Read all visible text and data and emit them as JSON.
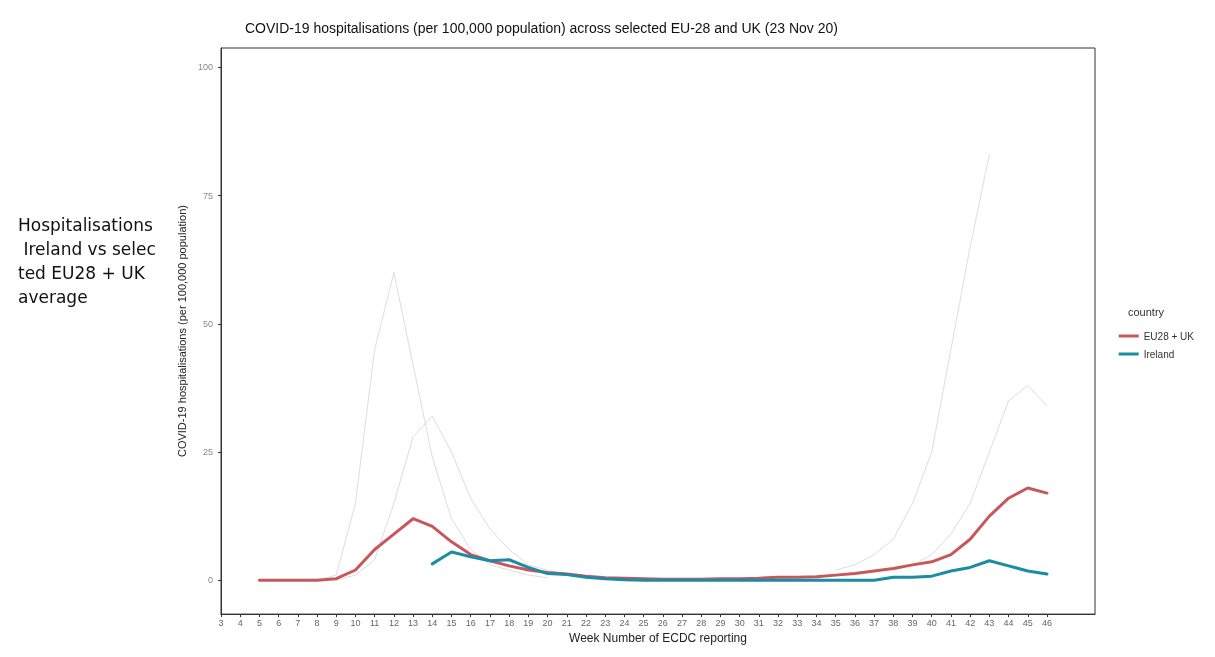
{
  "chart_data": {
    "type": "line",
    "title": "COVID-19 hospitalisations (per 100,000 population) across selected EU-28 and UK (23 Nov 20)",
    "xlabel": "Week Number of ECDC reporting",
    "ylabel": "COVID-19 hospitalisations (per 100,000 population)",
    "legend_title": "country",
    "annotations": [
      "Hospitalisations Ireland vs selected EU28 + UK average"
    ],
    "xlim": [
      3,
      48.5
    ],
    "xticks": [
      3,
      4,
      5,
      6,
      7,
      8,
      9,
      10,
      11,
      12,
      13,
      14,
      15,
      16,
      17,
      18,
      19,
      20,
      21,
      22,
      23,
      24,
      25,
      26,
      27,
      28,
      29,
      30,
      31,
      32,
      33,
      34,
      35,
      36,
      37,
      38,
      39,
      40,
      41,
      42,
      43,
      44,
      45,
      46
    ],
    "ylim": [
      -6.6,
      103.8
    ],
    "yticks": [
      0,
      25,
      50,
      75,
      100
    ],
    "grid": false,
    "legend": "right",
    "marker": "none",
    "line_style": "solid",
    "series": [
      {
        "color": "#dddddd",
        "x": [
          8,
          9,
          10,
          11,
          12,
          13,
          14,
          15,
          16,
          17,
          18,
          19,
          20
        ],
        "values": [
          0,
          1,
          15,
          45,
          60,
          42,
          24,
          12,
          6,
          3,
          2,
          1,
          0.5
        ]
      },
      {
        "color": "#dddddd",
        "x": [
          9,
          10,
          11,
          12,
          13,
          14,
          15,
          16,
          17,
          18,
          19,
          20,
          21,
          22
        ],
        "values": [
          0,
          1,
          4,
          15,
          28,
          32,
          25,
          16,
          10,
          6,
          3,
          2,
          1,
          0.5
        ]
      },
      {
        "color": "#dddddd",
        "x": [
          35,
          36,
          37,
          38,
          39,
          40,
          41,
          42,
          43
        ],
        "values": [
          2,
          3,
          5,
          8,
          15,
          25,
          45,
          65,
          83
        ]
      },
      {
        "color": "#dddddd",
        "x": [
          38,
          39,
          40,
          41,
          42,
          43,
          44,
          45,
          46
        ],
        "values": [
          2,
          3,
          5,
          9,
          15,
          25,
          35,
          38,
          34
        ]
      },
      {
        "name": "EU28 + UK",
        "color": "#c8575c",
        "x": [
          5,
          6,
          7,
          8,
          9,
          10,
          11,
          12,
          13,
          14,
          15,
          16,
          17,
          18,
          19,
          20,
          21,
          22,
          23,
          24,
          25,
          26,
          27,
          28,
          29,
          30,
          31,
          32,
          33,
          34,
          35,
          36,
          37,
          38,
          39,
          40,
          41,
          42,
          43,
          44,
          45,
          46
        ],
        "values": [
          0,
          0,
          0,
          0,
          0.3,
          2,
          6,
          9,
          12,
          10.5,
          7.5,
          5,
          3.8,
          2.8,
          2,
          1.5,
          1.2,
          0.8,
          0.5,
          0.4,
          0.3,
          0.2,
          0.2,
          0.2,
          0.3,
          0.3,
          0.4,
          0.6,
          0.6,
          0.7,
          1,
          1.3,
          1.8,
          2.3,
          3,
          3.6,
          5,
          8,
          12.5,
          16,
          18,
          17
        ]
      },
      {
        "name": "Ireland",
        "color": "#1a8ca3",
        "x": [
          14,
          15,
          16,
          17,
          18,
          19,
          20,
          21,
          22,
          23,
          24,
          25,
          26,
          27,
          28,
          29,
          30,
          31,
          32,
          33,
          34,
          35,
          36,
          37,
          38,
          39,
          40,
          41,
          42,
          43,
          44,
          45,
          46
        ],
        "values": [
          3.2,
          5.5,
          4.6,
          3.8,
          4,
          2.5,
          1.3,
          1.1,
          0.6,
          0.3,
          0.1,
          0,
          0,
          0,
          0,
          0,
          0,
          0,
          0,
          0,
          0,
          0,
          0,
          0,
          0.6,
          0.6,
          0.8,
          1.8,
          2.5,
          3.8,
          2.8,
          1.8,
          1.2
        ]
      }
    ]
  }
}
